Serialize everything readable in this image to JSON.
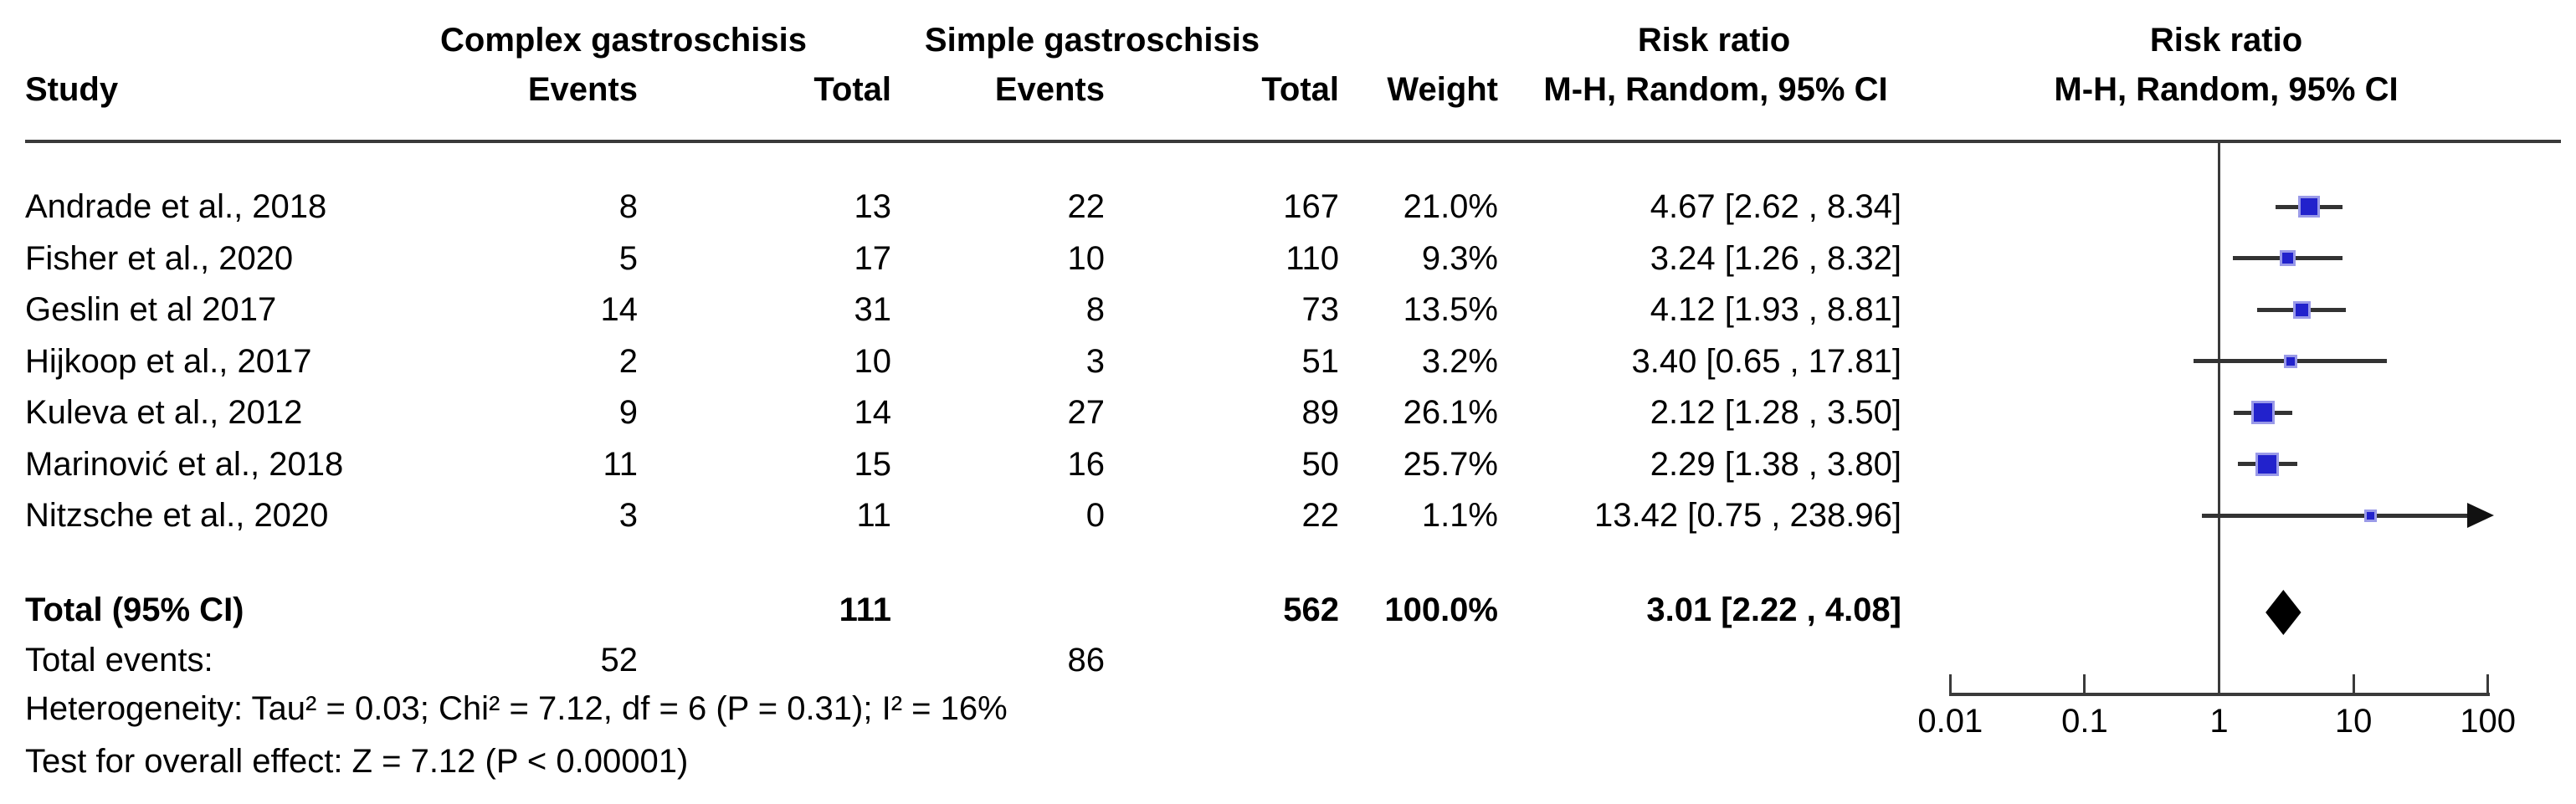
{
  "header": {
    "study": "Study",
    "group_complex": "Complex gastroschisis",
    "group_simple": "Simple gastroschisis",
    "events": "Events",
    "total": "Total",
    "weight": "Weight",
    "risk_ratio": "Risk ratio",
    "method_ci": "M-H, Random, 95% CI"
  },
  "studies": [
    {
      "name": "Andrade et al., 2018",
      "complex_events": "8",
      "complex_total": "13",
      "simple_events": "22",
      "simple_total": "167",
      "weight": "21.0%",
      "rr_label": "4.67 [2.62 , 8.34]",
      "rr": 4.67,
      "ci_low": 2.62,
      "ci_high": 8.34,
      "weight_pct": 21.0
    },
    {
      "name": "Fisher et al., 2020",
      "complex_events": "5",
      "complex_total": "17",
      "simple_events": "10",
      "simple_total": "110",
      "weight": "9.3%",
      "rr_label": "3.24 [1.26 , 8.32]",
      "rr": 3.24,
      "ci_low": 1.26,
      "ci_high": 8.32,
      "weight_pct": 9.3
    },
    {
      "name": "Geslin et al 2017",
      "complex_events": "14",
      "complex_total": "31",
      "simple_events": "8",
      "simple_total": "73",
      "weight": "13.5%",
      "rr_label": "4.12 [1.93 , 8.81]",
      "rr": 4.12,
      "ci_low": 1.93,
      "ci_high": 8.81,
      "weight_pct": 13.5
    },
    {
      "name": "Hijkoop et al., 2017",
      "complex_events": "2",
      "complex_total": "10",
      "simple_events": "3",
      "simple_total": "51",
      "weight": "3.2%",
      "rr_label": "3.40 [0.65 , 17.81]",
      "rr": 3.4,
      "ci_low": 0.65,
      "ci_high": 17.81,
      "weight_pct": 3.2
    },
    {
      "name": "Kuleva et al., 2012",
      "complex_events": "9",
      "complex_total": "14",
      "simple_events": "27",
      "simple_total": "89",
      "weight": "26.1%",
      "rr_label": "2.12 [1.28 , 3.50]",
      "rr": 2.12,
      "ci_low": 1.28,
      "ci_high": 3.5,
      "weight_pct": 26.1
    },
    {
      "name": "Marinović et al., 2018",
      "complex_events": "11",
      "complex_total": "15",
      "simple_events": "16",
      "simple_total": "50",
      "weight": "25.7%",
      "rr_label": "2.29 [1.38 , 3.80]",
      "rr": 2.29,
      "ci_low": 1.38,
      "ci_high": 3.8,
      "weight_pct": 25.7
    },
    {
      "name": "Nitzsche et al., 2020",
      "complex_events": "3",
      "complex_total": "11",
      "simple_events": "0",
      "simple_total": "22",
      "weight": "1.1%",
      "rr_label": "13.42 [0.75 , 238.96]",
      "rr": 13.42,
      "ci_low": 0.75,
      "ci_high": 238.96,
      "weight_pct": 1.1
    }
  ],
  "totals": {
    "label": "Total (95% CI)",
    "complex_total": "111",
    "simple_total": "562",
    "weight": "100.0%",
    "rr_label": "3.01 [2.22 , 4.08]",
    "rr": 3.01,
    "ci_low": 2.22,
    "ci_high": 4.08,
    "events_label": "Total events:",
    "complex_events": "52",
    "simple_events": "86"
  },
  "footer": {
    "heterogeneity": "Heterogeneity: Tau² = 0.03; Chi² = 7.12, df = 6 (P = 0.31); I² = 16%",
    "overall_effect": "Test for overall effect: Z = 7.12 (P < 0.00001)"
  },
  "axis": {
    "tick_labels": [
      "0.01",
      "0.1",
      "1",
      "10",
      "100"
    ],
    "tick_values": [
      0.01,
      0.1,
      1,
      10,
      100
    ]
  },
  "colors": {
    "marker": "#2222cc",
    "marker_halo": "#9a9ae8",
    "line": "#333333",
    "diamond": "#000000"
  },
  "chart_data": {
    "type": "scatter",
    "subtype": "forest-plot",
    "effect_measure": "Risk ratio, M-H, Random, 95% CI",
    "x_axis": {
      "scale": "log10",
      "range": [
        0.01,
        100
      ],
      "ticks": [
        0.01,
        0.1,
        1,
        10,
        100
      ],
      "null_line": 1
    },
    "groups": [
      "Complex gastroschisis",
      "Simple gastroschisis"
    ],
    "studies": [
      {
        "name": "Andrade et al., 2018",
        "complex_events": 8,
        "complex_total": 13,
        "simple_events": 22,
        "simple_total": 167,
        "weight_pct": 21.0,
        "rr": 4.67,
        "ci_low": 2.62,
        "ci_high": 8.34
      },
      {
        "name": "Fisher et al., 2020",
        "complex_events": 5,
        "complex_total": 17,
        "simple_events": 10,
        "simple_total": 110,
        "weight_pct": 9.3,
        "rr": 3.24,
        "ci_low": 1.26,
        "ci_high": 8.32
      },
      {
        "name": "Geslin et al 2017",
        "complex_events": 14,
        "complex_total": 31,
        "simple_events": 8,
        "simple_total": 73,
        "weight_pct": 13.5,
        "rr": 4.12,
        "ci_low": 1.93,
        "ci_high": 8.81
      },
      {
        "name": "Hijkoop et al., 2017",
        "complex_events": 2,
        "complex_total": 10,
        "simple_events": 3,
        "simple_total": 51,
        "weight_pct": 3.2,
        "rr": 3.4,
        "ci_low": 0.65,
        "ci_high": 17.81
      },
      {
        "name": "Kuleva et al., 2012",
        "complex_events": 9,
        "complex_total": 14,
        "simple_events": 27,
        "simple_total": 89,
        "weight_pct": 26.1,
        "rr": 2.12,
        "ci_low": 1.28,
        "ci_high": 3.5
      },
      {
        "name": "Marinović et al., 2018",
        "complex_events": 11,
        "complex_total": 15,
        "simple_events": 16,
        "simple_total": 50,
        "weight_pct": 25.7,
        "rr": 2.29,
        "ci_low": 1.38,
        "ci_high": 3.8
      },
      {
        "name": "Nitzsche et al., 2020",
        "complex_events": 3,
        "complex_total": 11,
        "simple_events": 0,
        "simple_total": 22,
        "weight_pct": 1.1,
        "rr": 13.42,
        "ci_low": 0.75,
        "ci_high": 238.96
      }
    ],
    "overall": {
      "label": "Total (95% CI)",
      "complex_total": 111,
      "simple_total": 562,
      "complex_events": 52,
      "simple_events": 86,
      "weight_pct": 100.0,
      "rr": 3.01,
      "ci_low": 2.22,
      "ci_high": 4.08
    },
    "heterogeneity": {
      "tau2": 0.03,
      "chi2": 7.12,
      "df": 6,
      "p": 0.31,
      "i2_pct": 16
    },
    "overall_effect_test": {
      "z": 7.12,
      "p": "< 0.00001"
    }
  }
}
